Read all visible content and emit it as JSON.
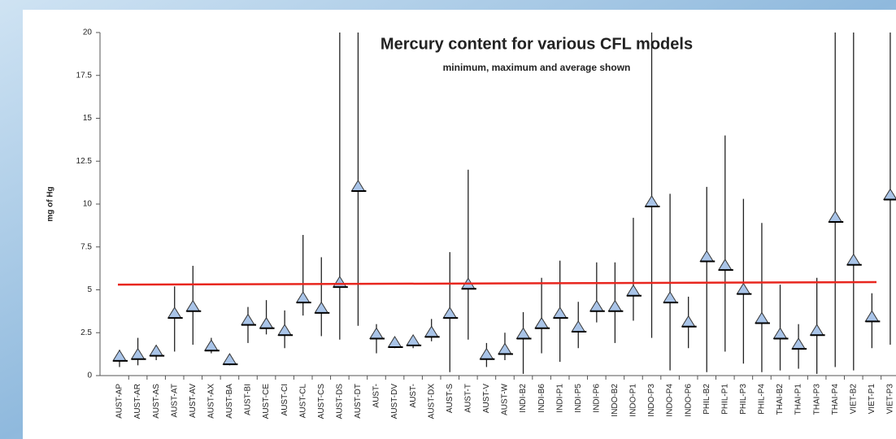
{
  "chart_data": {
    "type": "hilo",
    "title": "Mercury content for various CFL models",
    "subtitle": "minimum, maximum and average shown",
    "y_label": "mg of Hg",
    "categories": [
      "AUST-AP",
      "AUST-AR",
      "AUST-AS",
      "AUST-AT",
      "AUST-AV",
      "AUST-AX",
      "AUST-BA",
      "AUST-BI",
      "AUST-CE",
      "AUST-CI",
      "AUST-CL",
      "AUST-CS",
      "AUST-DS",
      "AUST-DT",
      "AUST-",
      "AUST-DV",
      "AUST-",
      "AUST-DX",
      "AUST-S",
      "AUST-T",
      "AUST-V",
      "AUST-W",
      "INDI-B2",
      "INDI-B6",
      "INDI-P1",
      "INDI-P5",
      "INDI-P6",
      "INDO-B2",
      "INDO-P1",
      "INDO-P3",
      "INDO-P4",
      "INDO-P6",
      "PHIL-B2",
      "PHIL-P1",
      "PHIL-P3",
      "PHIL-P4",
      "THAI-B2",
      "THAI-P1",
      "THAI-P3",
      "THAI-P4",
      "VIET-B2",
      "VIET-P1",
      "VIET-P3"
    ],
    "max": [
      1.5,
      2.2,
      1.7,
      5.2,
      6.4,
      2.2,
      1.1,
      4.0,
      4.4,
      3.8,
      8.2,
      6.9,
      20,
      20,
      3.0,
      2.0,
      2.0,
      3.3,
      7.2,
      12,
      1.9,
      2.5,
      3.7,
      5.7,
      6.7,
      4.3,
      6.6,
      6.6,
      9.2,
      20,
      10.6,
      4.6,
      11,
      14,
      10.3,
      8.9,
      5.3,
      3.0,
      5.7,
      20,
      20,
      4.8,
      20
    ],
    "min": [
      0.5,
      0.6,
      0.9,
      1.4,
      1.8,
      1.3,
      0.6,
      1.9,
      2.4,
      1.6,
      3.5,
      2.3,
      2.1,
      2.9,
      1.3,
      1.6,
      1.6,
      2.0,
      0.2,
      2.1,
      0.5,
      0.9,
      0.1,
      1.3,
      0.8,
      1.6,
      3.1,
      1.9,
      3.2,
      2.2,
      0.3,
      1.6,
      0.2,
      1.4,
      0.7,
      0.2,
      0.3,
      0.4,
      0.1,
      0.5,
      0.3,
      1.6,
      1.8
    ],
    "mean": [
      1.0,
      1.1,
      1.3,
      3.5,
      3.9,
      1.6,
      0.8,
      3.1,
      2.9,
      2.5,
      4.4,
      3.8,
      5.3,
      10.9,
      2.3,
      1.8,
      1.9,
      2.4,
      3.5,
      5.2,
      1.1,
      1.4,
      2.3,
      2.9,
      3.5,
      2.7,
      3.9,
      3.9,
      4.8,
      10.0,
      4.4,
      3.0,
      6.8,
      6.3,
      4.9,
      3.2,
      2.3,
      1.7,
      2.5,
      9.1,
      6.6,
      3.3,
      10.4
    ],
    "marker_color": "#a9c4e8",
    "line_color": "#222222",
    "average_line": {
      "values": [
        5.3,
        5.45
      ],
      "color": "#e8261e"
    },
    "ylim": [
      0,
      20
    ],
    "yticks": [
      0,
      2.5,
      5,
      7.5,
      10,
      12.5,
      15,
      17.5,
      20
    ],
    "grid": false
  }
}
